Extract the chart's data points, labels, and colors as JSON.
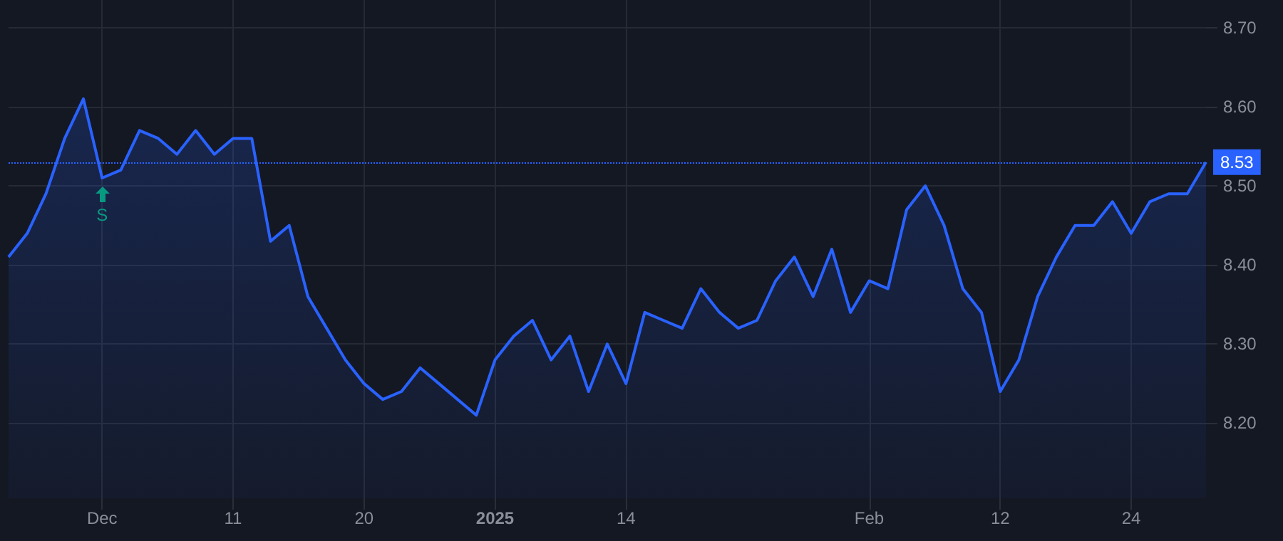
{
  "chart_data": {
    "type": "area",
    "categories": [
      null,
      null,
      null,
      null,
      null,
      "Dec",
      null,
      null,
      null,
      null,
      null,
      null,
      "11",
      null,
      null,
      null,
      null,
      null,
      null,
      "20",
      null,
      null,
      null,
      null,
      null,
      null,
      "2025",
      null,
      null,
      null,
      null,
      null,
      null,
      "14",
      null,
      null,
      null,
      null,
      null,
      null,
      null,
      null,
      null,
      null,
      null,
      null,
      "Feb",
      null,
      null,
      null,
      null,
      null,
      null,
      "12",
      null,
      null,
      null,
      null,
      null,
      null,
      "24",
      null,
      null,
      null,
      null
    ],
    "values": [
      8.41,
      8.44,
      8.49,
      8.56,
      8.61,
      8.51,
      8.52,
      8.57,
      8.56,
      8.54,
      8.57,
      8.54,
      8.56,
      8.56,
      8.43,
      8.45,
      8.36,
      8.32,
      8.28,
      8.25,
      8.23,
      8.24,
      8.27,
      8.25,
      8.23,
      8.21,
      8.28,
      8.31,
      8.33,
      8.28,
      8.31,
      8.24,
      8.3,
      8.25,
      8.34,
      8.33,
      8.32,
      8.37,
      8.34,
      8.32,
      8.33,
      8.38,
      8.41,
      8.36,
      8.42,
      8.34,
      8.38,
      8.37,
      8.47,
      8.5,
      8.45,
      8.37,
      8.34,
      8.24,
      8.28,
      8.36,
      8.41,
      8.45,
      8.45,
      8.48,
      8.44,
      8.48,
      8.49,
      8.49,
      8.53
    ],
    "color": "#2962ff",
    "marker": "none",
    "ylim": [
      8.105,
      8.735
    ],
    "yticks": [
      {
        "value": 8.2,
        "label": "8.20"
      },
      {
        "value": 8.3,
        "label": "8.30"
      },
      {
        "value": 8.4,
        "label": "8.40"
      },
      {
        "value": 8.5,
        "label": "8.50"
      },
      {
        "value": 8.6,
        "label": "8.60"
      },
      {
        "value": 8.7,
        "label": "8.70"
      }
    ],
    "grid": true,
    "ref_lines": [
      {
        "axis": "y",
        "value": 8.53,
        "label": "8.53",
        "color": "#2962ff",
        "line_style": "dotted"
      }
    ],
    "annotations": [
      {
        "text": "S",
        "x": "Dec",
        "y": 8.51
      }
    ]
  }
}
